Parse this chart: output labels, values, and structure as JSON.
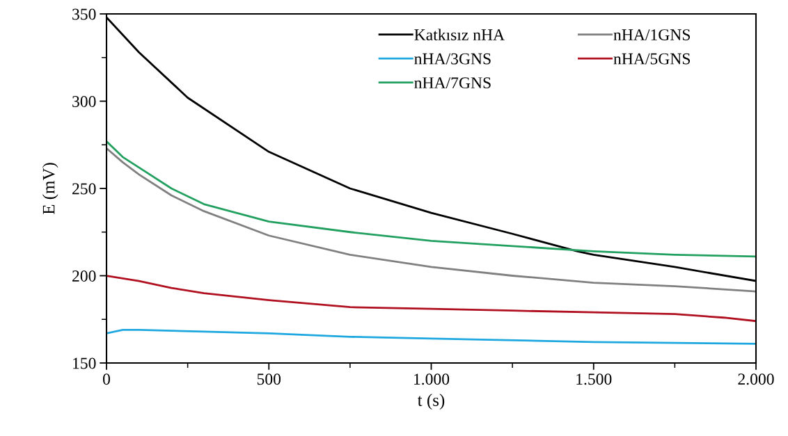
{
  "chart_data": {
    "type": "line",
    "xlabel": "t (s)",
    "ylabel": "E (mV)",
    "xlim": [
      0,
      2000
    ],
    "ylim": [
      150,
      350
    ],
    "xticks": [
      0,
      500,
      {
        "value": 1000,
        "label": "1.000"
      },
      {
        "value": 1500,
        "label": "1.500"
      },
      {
        "value": 2000,
        "label": "2.000"
      }
    ],
    "yticks": [
      150,
      200,
      250,
      300,
      350
    ],
    "grid": false,
    "legend": "top",
    "line_style": "solid",
    "marker": "none",
    "series": [
      {
        "name": "Katkısız nHA",
        "color": "#000000",
        "x": [
          0,
          100,
          250,
          500,
          750,
          1000,
          1250,
          1450,
          1500,
          1750,
          2000
        ],
        "values": [
          348,
          328,
          302,
          271,
          250,
          236,
          224,
          214,
          212,
          205,
          197
        ]
      },
      {
        "name": "nHA/1GNS",
        "color": "#808080",
        "x": [
          0,
          50,
          100,
          200,
          300,
          500,
          750,
          1000,
          1250,
          1500,
          1750,
          2000
        ],
        "values": [
          273,
          265,
          258,
          246,
          237,
          223,
          212,
          205,
          200,
          196,
          194,
          191
        ]
      },
      {
        "name": "nHA/3GNS",
        "color": "#1fa8e0",
        "x": [
          0,
          50,
          100,
          300,
          500,
          750,
          1000,
          1500,
          2000
        ],
        "values": [
          167,
          169,
          169,
          168,
          167,
          165,
          164,
          162,
          161
        ]
      },
      {
        "name": "nHA/5GNS",
        "color": "#b01020",
        "x": [
          0,
          100,
          200,
          300,
          500,
          750,
          1000,
          1250,
          1500,
          1750,
          1900,
          2000
        ],
        "values": [
          200,
          197,
          193,
          190,
          186,
          182,
          181,
          180,
          179,
          178,
          176,
          174
        ]
      },
      {
        "name": "nHA/7GNS",
        "color": "#22a060",
        "x": [
          0,
          50,
          100,
          200,
          300,
          500,
          750,
          1000,
          1250,
          1500,
          1750,
          2000
        ],
        "values": [
          277,
          268,
          262,
          250,
          241,
          231,
          225,
          220,
          217,
          214,
          212,
          211
        ]
      }
    ]
  }
}
